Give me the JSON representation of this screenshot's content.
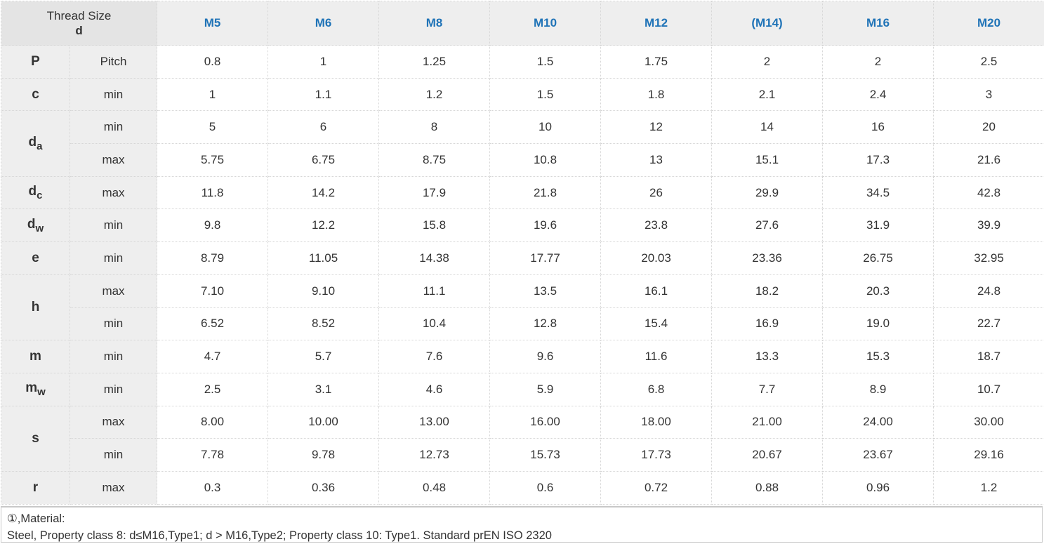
{
  "header": {
    "title": "Thread Size",
    "symbol": "d",
    "sizes": [
      "M5",
      "M6",
      "M8",
      "M10",
      "M12",
      "(M14)",
      "M16",
      "M20"
    ]
  },
  "rows": [
    {
      "sym": "P",
      "sub": "",
      "lim": "Pitch",
      "vals": [
        "0.8",
        "1",
        "1.25",
        "1.5",
        "1.75",
        "2",
        "2",
        "2.5"
      ]
    },
    {
      "sym": "c",
      "sub": "",
      "lim": "min",
      "vals": [
        "1",
        "1.1",
        "1.2",
        "1.5",
        "1.8",
        "2.1",
        "2.4",
        "3"
      ]
    },
    {
      "sym": "d",
      "sub": "a",
      "lim": "min",
      "vals": [
        "5",
        "6",
        "8",
        "10",
        "12",
        "14",
        "16",
        "20"
      ]
    },
    {
      "sym": "",
      "sub": "",
      "lim": "max",
      "vals": [
        "5.75",
        "6.75",
        "8.75",
        "10.8",
        "13",
        "15.1",
        "17.3",
        "21.6"
      ]
    },
    {
      "sym": "d",
      "sub": "c",
      "lim": "max",
      "vals": [
        "11.8",
        "14.2",
        "17.9",
        "21.8",
        "26",
        "29.9",
        "34.5",
        "42.8"
      ]
    },
    {
      "sym": "d",
      "sub": "w",
      "lim": "min",
      "vals": [
        "9.8",
        "12.2",
        "15.8",
        "19.6",
        "23.8",
        "27.6",
        "31.9",
        "39.9"
      ]
    },
    {
      "sym": "e",
      "sub": "",
      "lim": "min",
      "vals": [
        "8.79",
        "11.05",
        "14.38",
        "17.77",
        "20.03",
        "23.36",
        "26.75",
        "32.95"
      ]
    },
    {
      "sym": "h",
      "sub": "",
      "lim": "max",
      "vals": [
        "7.10",
        "9.10",
        "11.1",
        "13.5",
        "16.1",
        "18.2",
        "20.3",
        "24.8"
      ]
    },
    {
      "sym": "",
      "sub": "",
      "lim": "min",
      "vals": [
        "6.52",
        "8.52",
        "10.4",
        "12.8",
        "15.4",
        "16.9",
        "19.0",
        "22.7"
      ]
    },
    {
      "sym": "m",
      "sub": "",
      "lim": "min",
      "vals": [
        "4.7",
        "5.7",
        "7.6",
        "9.6",
        "11.6",
        "13.3",
        "15.3",
        "18.7"
      ]
    },
    {
      "sym": "m",
      "sub": "w",
      "lim": "min",
      "vals": [
        "2.5",
        "3.1",
        "4.6",
        "5.9",
        "6.8",
        "7.7",
        "8.9",
        "10.7"
      ]
    },
    {
      "sym": "s",
      "sub": "",
      "lim": "max",
      "vals": [
        "8.00",
        "10.00",
        "13.00",
        "16.00",
        "18.00",
        "21.00",
        "24.00",
        "30.00"
      ]
    },
    {
      "sym": "",
      "sub": "",
      "lim": "min",
      "vals": [
        "7.78",
        "9.78",
        "12.73",
        "15.73",
        "17.73",
        "20.67",
        "23.67",
        "29.16"
      ]
    },
    {
      "sym": "r",
      "sub": "",
      "lim": "max",
      "vals": [
        "0.3",
        "0.36",
        "0.48",
        "0.6",
        "0.72",
        "0.88",
        "0.96",
        "1.2"
      ]
    }
  ],
  "notes": {
    "line1": "①,Material:",
    "line2": "Steel, Property class 8: d≤M16,Type1;  d > M16,Type2; Property class 10: Type1. Standard prEN ISO 2320"
  },
  "colors": {
    "size_header": "#1f73b7",
    "header_bg": "#eeeeee",
    "corner_bg": "#e4e4e4",
    "text": "#333333"
  }
}
